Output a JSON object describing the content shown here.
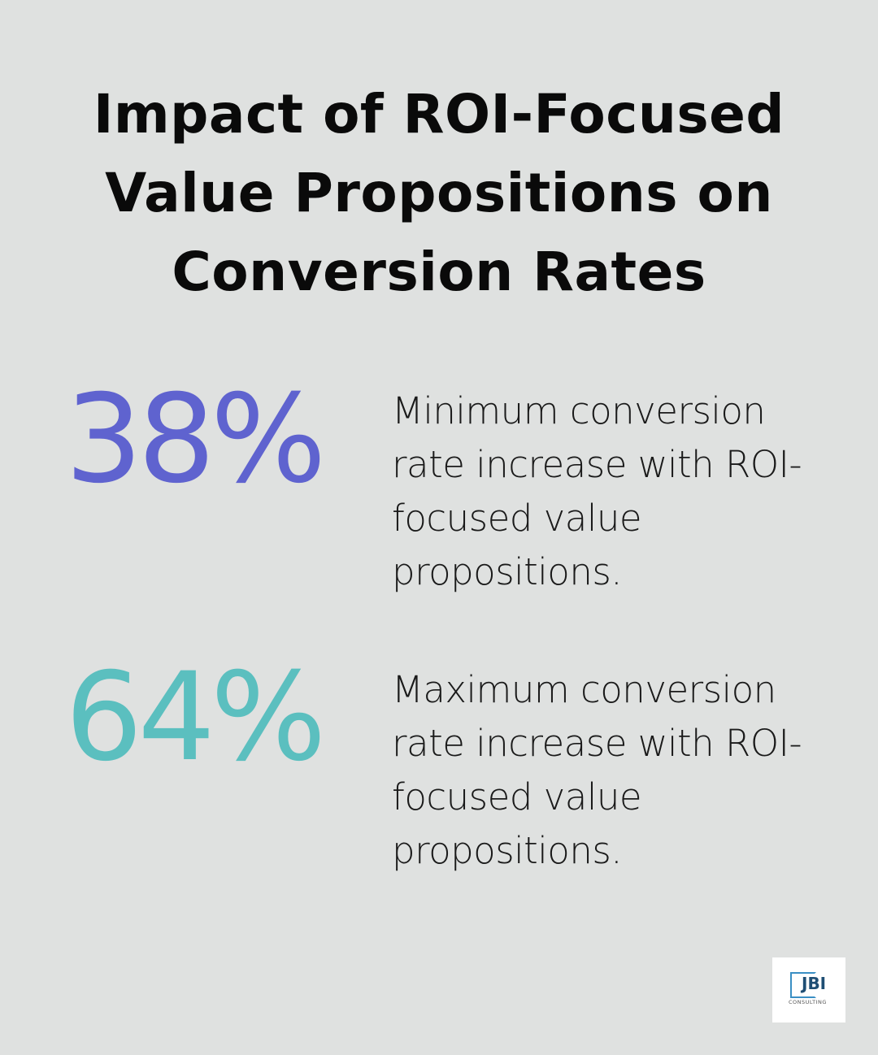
{
  "title": "Impact of ROI-Focused Value Propositions on Conversion Rates",
  "stats": [
    {
      "value": "38%",
      "color": "#5f63cf",
      "description": "Minimum conversion rate increase with ROI-focused value propositions."
    },
    {
      "value": "64%",
      "color": "#5bbfbf",
      "description": "Maximum conversion rate increase with ROI-focused value propositions."
    }
  ],
  "logo": {
    "name": "JBI",
    "subtitle": "CONSULTING"
  }
}
